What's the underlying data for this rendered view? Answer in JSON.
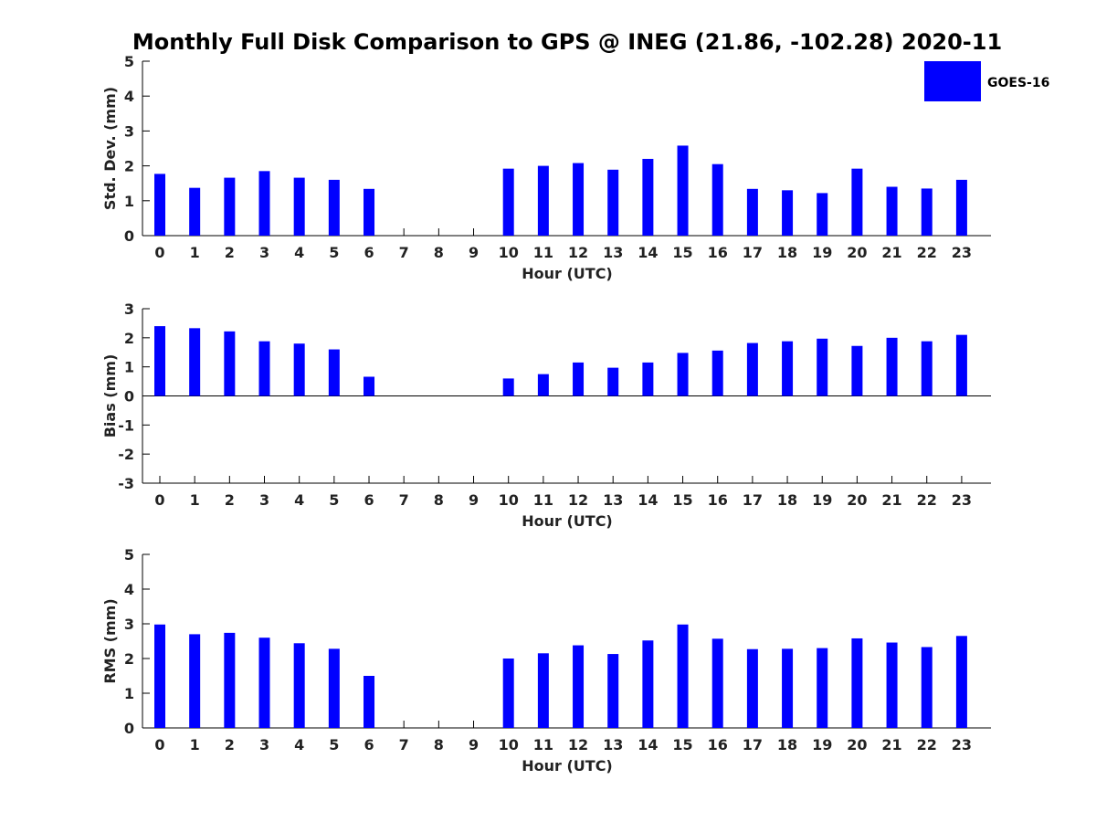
{
  "title": "Monthly Full Disk Comparison to GPS @ INEG (21.86, -102.28) 2020-11",
  "legend": {
    "label": "GOES-16",
    "color": "#0000ff"
  },
  "colors": {
    "bar": "#0000ff",
    "axis": "#000000",
    "text": "#222222"
  },
  "chart_data": [
    {
      "type": "bar",
      "title": "Monthly Full Disk Comparison to GPS @ INEG (21.86, -102.28) 2020-11",
      "xlabel": "Hour (UTC)",
      "ylabel": "Std. Dev. (mm)",
      "ylim": [
        0,
        5
      ],
      "yticks": [
        0,
        1,
        2,
        3,
        4,
        5
      ],
      "categories": [
        "0",
        "1",
        "2",
        "3",
        "4",
        "5",
        "6",
        "7",
        "8",
        "9",
        "10",
        "11",
        "12",
        "13",
        "14",
        "15",
        "16",
        "17",
        "18",
        "19",
        "20",
        "21",
        "22",
        "23"
      ],
      "series": [
        {
          "name": "GOES-16",
          "values": [
            1.77,
            1.37,
            1.66,
            1.85,
            1.66,
            1.6,
            1.34,
            null,
            null,
            null,
            1.92,
            2.0,
            2.08,
            1.89,
            2.2,
            2.58,
            2.05,
            1.34,
            1.3,
            1.22,
            1.92,
            1.4,
            1.35,
            1.6
          ]
        }
      ],
      "legend": "top-right",
      "grid": false
    },
    {
      "type": "bar",
      "xlabel": "Hour (UTC)",
      "ylabel": "Bias (mm)",
      "ylim": [
        -3,
        3
      ],
      "yticks": [
        -3,
        -2,
        -1,
        0,
        1,
        2,
        3
      ],
      "categories": [
        "0",
        "1",
        "2",
        "3",
        "4",
        "5",
        "6",
        "7",
        "8",
        "9",
        "10",
        "11",
        "12",
        "13",
        "14",
        "15",
        "16",
        "17",
        "18",
        "19",
        "20",
        "21",
        "22",
        "23"
      ],
      "series": [
        {
          "name": "GOES-16",
          "values": [
            2.4,
            2.33,
            2.22,
            1.88,
            1.8,
            1.6,
            0.66,
            null,
            null,
            null,
            0.6,
            0.75,
            1.15,
            0.97,
            1.15,
            1.48,
            1.56,
            1.82,
            1.88,
            1.97,
            1.72,
            2.0,
            1.88,
            2.1
          ]
        }
      ],
      "grid": false
    },
    {
      "type": "bar",
      "xlabel": "Hour (UTC)",
      "ylabel": "RMS (mm)",
      "ylim": [
        0,
        5
      ],
      "yticks": [
        0,
        1,
        2,
        3,
        4,
        5
      ],
      "categories": [
        "0",
        "1",
        "2",
        "3",
        "4",
        "5",
        "6",
        "7",
        "8",
        "9",
        "10",
        "11",
        "12",
        "13",
        "14",
        "15",
        "16",
        "17",
        "18",
        "19",
        "20",
        "21",
        "22",
        "23"
      ],
      "series": [
        {
          "name": "GOES-16",
          "values": [
            2.98,
            2.7,
            2.74,
            2.6,
            2.44,
            2.28,
            1.5,
            null,
            null,
            null,
            2.0,
            2.15,
            2.38,
            2.13,
            2.52,
            2.98,
            2.57,
            2.27,
            2.28,
            2.3,
            2.58,
            2.46,
            2.33,
            2.65
          ]
        }
      ],
      "grid": false
    }
  ]
}
